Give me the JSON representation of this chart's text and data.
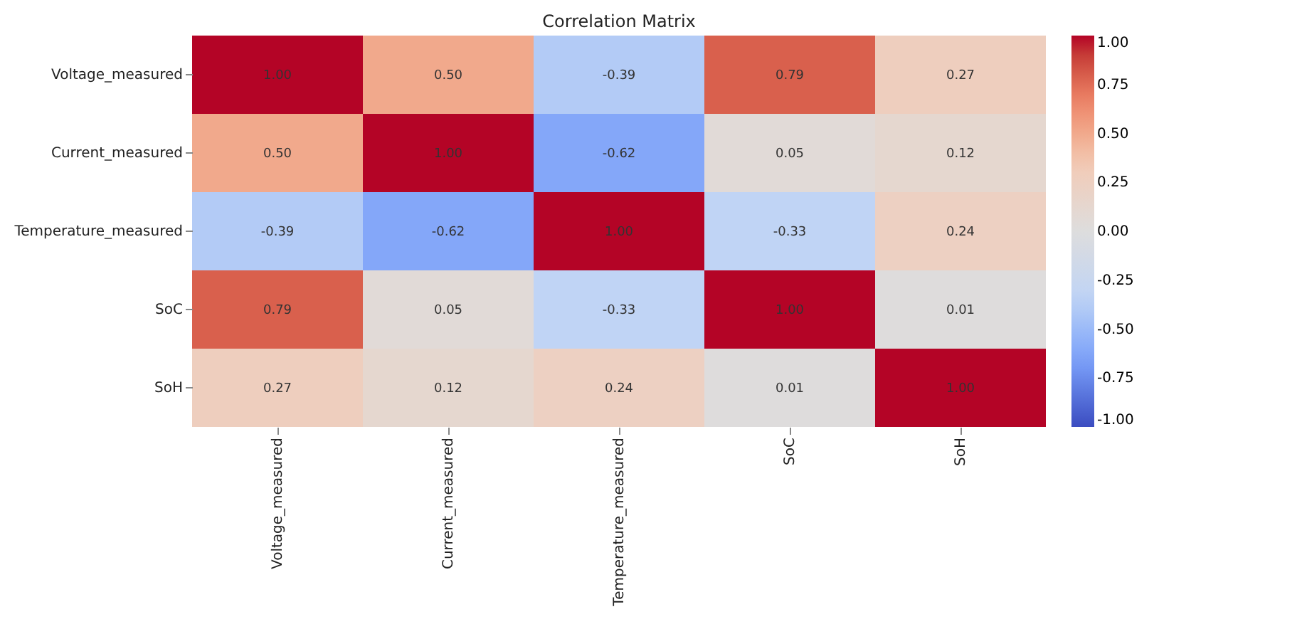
{
  "chart_data": {
    "type": "heatmap",
    "title": "Correlation Matrix",
    "categories": [
      "Voltage_measured",
      "Current_measured",
      "Temperature_measured",
      "SoC",
      "SoH"
    ],
    "y_categories": [
      "Voltage_measured",
      "Current_measured",
      "Temperature_measured",
      "SoC",
      "SoH"
    ],
    "cells": [
      [
        1.0,
        0.5,
        -0.39,
        0.79,
        0.27
      ],
      [
        0.5,
        1.0,
        -0.62,
        0.05,
        0.12
      ],
      [
        -0.39,
        -0.62,
        1.0,
        -0.33,
        0.24
      ],
      [
        0.79,
        0.05,
        -0.33,
        1.0,
        0.01
      ],
      [
        0.27,
        0.12,
        0.24,
        0.01,
        1.0
      ]
    ],
    "cell_labels": [
      [
        "1.00",
        "0.50",
        "-0.39",
        "0.79",
        "0.27"
      ],
      [
        "0.50",
        "1.00",
        "-0.62",
        "0.05",
        "0.12"
      ],
      [
        "-0.39",
        "-0.62",
        "1.00",
        "-0.33",
        "0.24"
      ],
      [
        "0.79",
        "0.05",
        "-0.33",
        "1.00",
        "0.01"
      ],
      [
        "0.27",
        "0.12",
        "0.24",
        "0.01",
        "1.00"
      ]
    ],
    "clim": [
      -1,
      1
    ],
    "cticks": [
      {
        "value": -1,
        "label": "-1.00"
      },
      {
        "value": -0.75,
        "label": "-0.75"
      },
      {
        "value": -0.5,
        "label": "-0.50"
      },
      {
        "value": -0.25,
        "label": "-0.25"
      },
      {
        "value": 0,
        "label": "0.00"
      },
      {
        "value": 0.25,
        "label": "0.25"
      },
      {
        "value": 0.5,
        "label": "0.50"
      },
      {
        "value": 0.75,
        "label": "0.75"
      },
      {
        "value": 1,
        "label": "1.00"
      }
    ]
  }
}
